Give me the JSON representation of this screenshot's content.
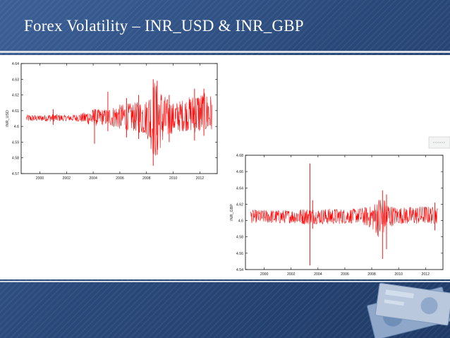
{
  "slide": {
    "title": "Forex Volatility – INR_USD & INR_GBP"
  },
  "chart_data": [
    {
      "type": "line",
      "title": "",
      "xlabel": "",
      "ylabel": "INR_USD",
      "xlim": [
        1998.6,
        2013.3
      ],
      "ylim": [
        4.57,
        4.64
      ],
      "xticks": [
        "2000",
        "2002",
        "2004",
        "2006",
        "2008",
        "2010",
        "2012"
      ],
      "yticks": [
        "4.57",
        "4.58",
        "4.59",
        "4.6",
        "4.61",
        "4.62",
        "4.63",
        "4.64"
      ],
      "series_color": "#ff0000",
      "envelope": {
        "x": [
          1999.0,
          2000.0,
          2001.0,
          2002.0,
          2003.0,
          2004.0,
          2005.0,
          2006.0,
          2007.0,
          2008.0,
          2008.6,
          2009.0,
          2009.5,
          2010.0,
          2011.0,
          2012.0,
          2012.9
        ],
        "low": [
          4.603,
          4.6035,
          4.603,
          4.6035,
          4.603,
          4.6,
          4.601,
          4.598,
          4.597,
          4.594,
          4.578,
          4.585,
          4.592,
          4.596,
          4.597,
          4.595,
          4.596
        ],
        "high": [
          4.6075,
          4.607,
          4.608,
          4.607,
          4.608,
          4.611,
          4.611,
          4.614,
          4.615,
          4.617,
          4.63,
          4.625,
          4.618,
          4.615,
          4.618,
          4.622,
          4.62
        ]
      },
      "spikes": [
        {
          "x": 2001.0,
          "low": 4.601,
          "high": 4.611
        },
        {
          "x": 2004.1,
          "low": 4.589,
          "high": 4.611
        },
        {
          "x": 2005.1,
          "low": 4.597,
          "high": 4.622
        },
        {
          "x": 2006.5,
          "low": 4.593,
          "high": 4.618
        },
        {
          "x": 2007.4,
          "low": 4.592,
          "high": 4.62
        },
        {
          "x": 2008.5,
          "low": 4.575,
          "high": 4.63
        },
        {
          "x": 2008.8,
          "low": 4.582,
          "high": 4.629
        },
        {
          "x": 2009.7,
          "low": 4.59,
          "high": 4.62
        },
        {
          "x": 2011.6,
          "low": 4.591,
          "high": 4.624
        },
        {
          "x": 2012.3,
          "low": 4.594,
          "high": 4.624
        }
      ]
    },
    {
      "type": "line",
      "title": "",
      "xlabel": "",
      "ylabel": "INR_GBP",
      "xlim": [
        1998.6,
        2013.3
      ],
      "ylim": [
        4.54,
        4.68
      ],
      "xticks": [
        "2000",
        "2002",
        "2004",
        "2006",
        "2008",
        "2010",
        "2012"
      ],
      "yticks": [
        "4.54",
        "4.56",
        "4.58",
        "4.6",
        "4.62",
        "4.64",
        "4.66",
        "4.68"
      ],
      "series_color": "#ff0000",
      "envelope": {
        "x": [
          1999.0,
          2000.0,
          2001.0,
          2002.0,
          2003.0,
          2004.0,
          2005.0,
          2006.0,
          2007.0,
          2008.0,
          2008.7,
          2009.0,
          2009.5,
          2010.0,
          2011.0,
          2012.0,
          2012.9
        ],
        "low": [
          4.597,
          4.597,
          4.596,
          4.597,
          4.595,
          4.596,
          4.595,
          4.596,
          4.597,
          4.59,
          4.575,
          4.588,
          4.593,
          4.596,
          4.595,
          4.596,
          4.596
        ],
        "high": [
          4.613,
          4.613,
          4.613,
          4.613,
          4.615,
          4.614,
          4.615,
          4.614,
          4.615,
          4.618,
          4.632,
          4.625,
          4.618,
          4.616,
          4.617,
          4.618,
          4.616
        ]
      },
      "spikes": [
        {
          "x": 2003.4,
          "low": 4.545,
          "high": 4.67
        },
        {
          "x": 2003.6,
          "low": 4.59,
          "high": 4.625
        },
        {
          "x": 2008.8,
          "low": 4.553,
          "high": 4.637
        },
        {
          "x": 2009.1,
          "low": 4.565,
          "high": 4.632
        },
        {
          "x": 2012.7,
          "low": 4.588,
          "high": 4.622
        }
      ]
    }
  ]
}
